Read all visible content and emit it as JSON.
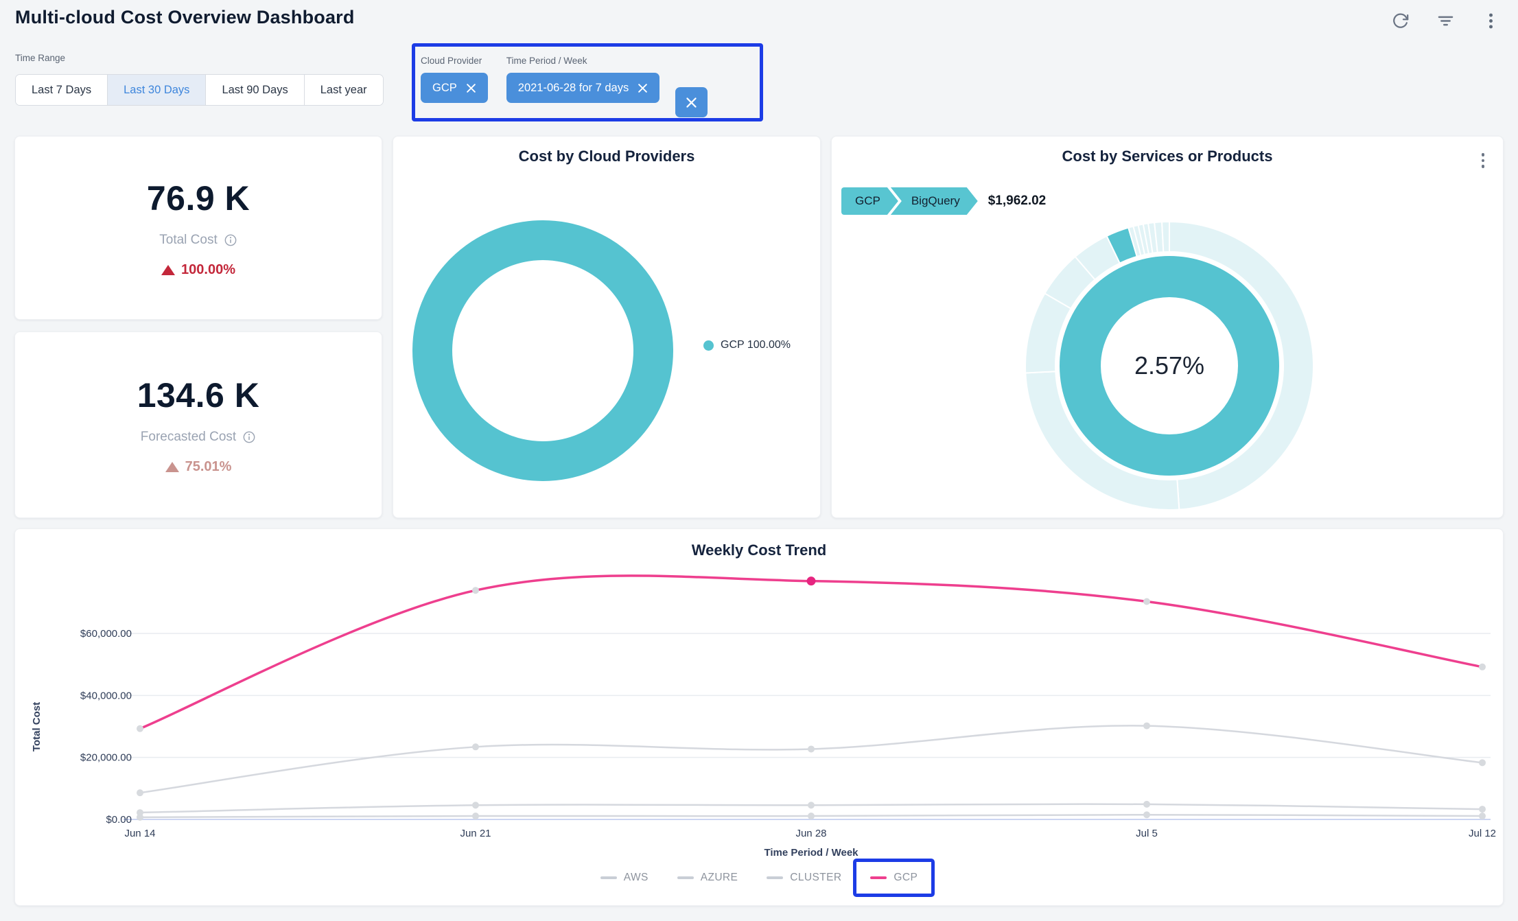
{
  "header": {
    "title": "Multi-cloud Cost Overview Dashboard",
    "icons": [
      "refresh-icon",
      "filter-icon",
      "kebab-menu-icon"
    ]
  },
  "colors": {
    "annotation_blue": "#1c3ce6",
    "chip_blue": "#4a8fdb",
    "teal": "#55c3d0",
    "pale_teal": "#e2f3f6",
    "pink": "#ee3f8e",
    "delta_red": "#c3273a",
    "delta_salmon": "#c9938e",
    "active_tab_blue": "#3e86dc"
  },
  "filters": {
    "time_range": {
      "label": "Time Range",
      "options": [
        "Last 7 Days",
        "Last 30 Days",
        "Last 90 Days",
        "Last year"
      ],
      "selected": "Last 30 Days"
    },
    "selected_filters": {
      "cloud_provider": {
        "label": "Cloud Provider",
        "value": "GCP"
      },
      "time_period": {
        "label": "Time Period / Week",
        "value": "2021-06-28 for 7 days"
      }
    }
  },
  "kpis": [
    {
      "value": "76.9 K",
      "label": "Total Cost",
      "delta": "100.00%",
      "delta_direction": "up"
    },
    {
      "value": "134.6 K",
      "label": "Forecasted Cost",
      "delta": "75.01%",
      "delta_direction": "up"
    }
  ],
  "chart_data": [
    {
      "id": "cost_by_cloud_providers",
      "type": "pie",
      "title": "Cost by Cloud Providers",
      "labels": [
        "GCP"
      ],
      "values": [
        100.0
      ],
      "colors": [
        "#55c3d0"
      ],
      "donut": true,
      "legend": [
        "GCP 100.00%"
      ],
      "legend_position": "right"
    },
    {
      "id": "cost_by_services_or_products",
      "type": "pie",
      "title": "Cost by Services or Products",
      "breadcrumb": [
        "GCP",
        "BigQuery"
      ],
      "breadcrumb_value": "$1,962.02",
      "center_label": "2.57%",
      "rings": {
        "inner": {
          "labels": [
            "GCP"
          ],
          "values": [
            100.0
          ],
          "color": "#55c3d0"
        },
        "outer": {
          "base_color": "#e2f3f6",
          "highlight_color": "#55c3d0",
          "highlight_index": 5,
          "highlight_label": "BigQuery",
          "highlight_value": 2.57,
          "values": [
            48.89,
            25.28,
            9.17,
            5.28,
            4.17,
            2.57,
            0.56,
            0.56,
            0.56,
            0.56,
            0.69,
            0.83,
            0.83
          ]
        }
      }
    },
    {
      "id": "weekly_cost_trend",
      "type": "line",
      "title": "Weekly Cost Trend",
      "categories": [
        "Jun 14",
        "Jun 21",
        "Jun 28",
        "Jul 5",
        "Jul 12"
      ],
      "series": [
        {
          "name": "AWS",
          "color": "#d5d8de",
          "values": [
            8600,
            23400,
            22700,
            30200,
            18300
          ]
        },
        {
          "name": "AZURE",
          "color": "#d5d8de",
          "values": [
            2200,
            4600,
            4600,
            4900,
            3300
          ]
        },
        {
          "name": "CLUSTER",
          "color": "#d5d8de",
          "values": [
            700,
            1100,
            1100,
            1500,
            1100
          ]
        },
        {
          "name": "GCP",
          "color": "#ee3f8e",
          "values": [
            29300,
            73900,
            76900,
            70300,
            49200
          ],
          "highlight_point_index": 2
        }
      ],
      "xlabel": "Time Period / Week",
      "ylabel": "Total Cost",
      "yticks": [
        0,
        20000,
        40000,
        60000
      ],
      "ytick_labels": [
        "$0.00",
        "$20,000.00",
        "$40,000.00",
        "$60,000.00"
      ],
      "ylim": [
        0,
        80000
      ],
      "grid": true,
      "legend_position": "bottom"
    }
  ]
}
